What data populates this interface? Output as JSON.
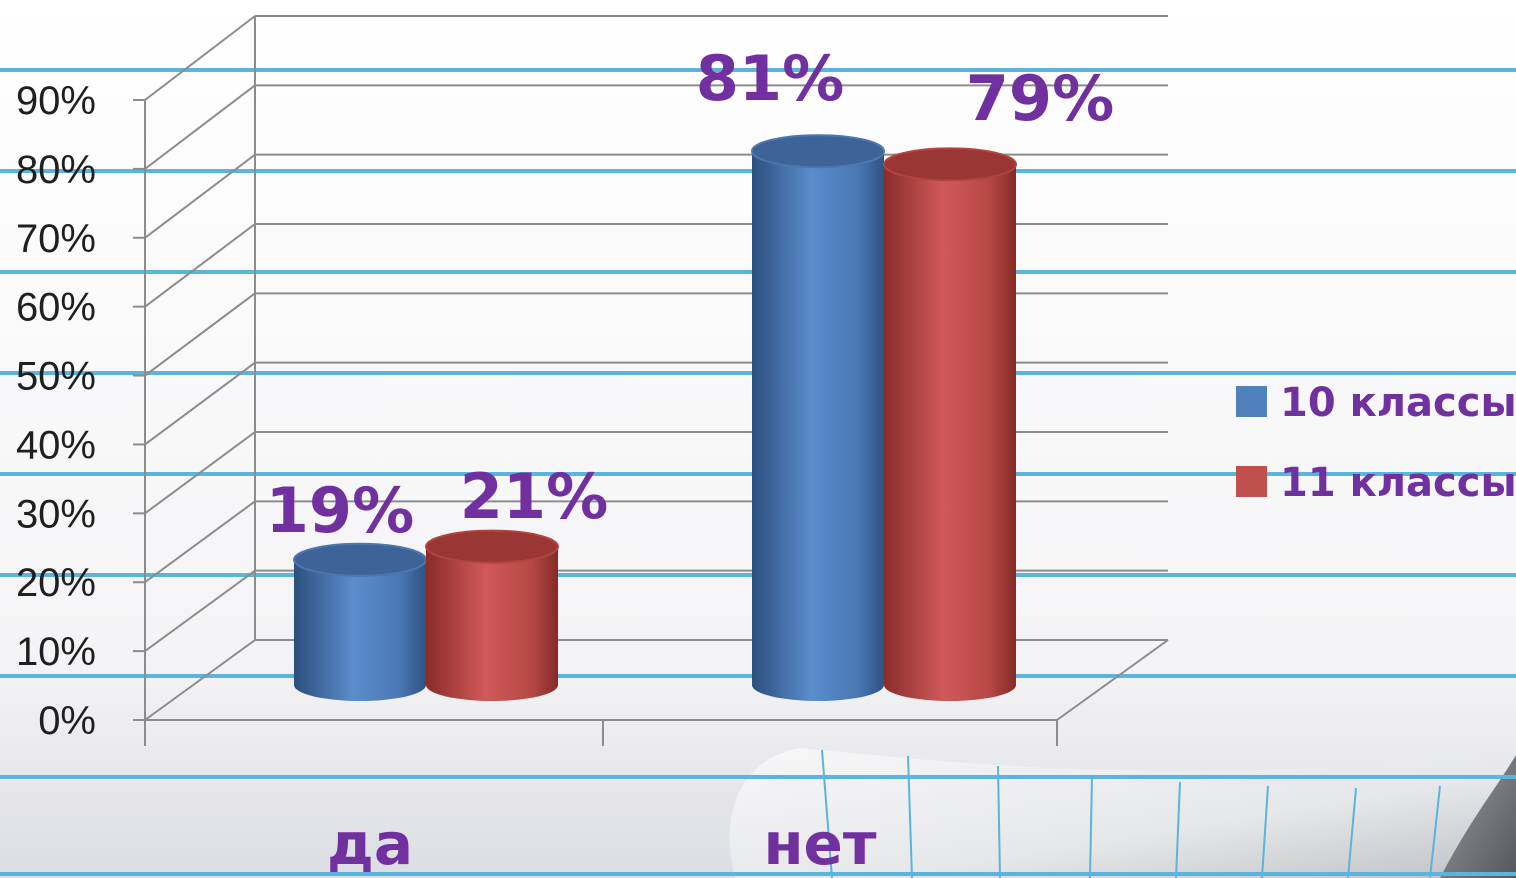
{
  "chart_data": {
    "type": "bar",
    "categories": [
      "да",
      "нет"
    ],
    "series": [
      {
        "name": "10 классы",
        "values": [
          19,
          81
        ]
      },
      {
        "name": "11 классы",
        "values": [
          21,
          79
        ]
      }
    ],
    "data_labels": [
      [
        "19%",
        "81%"
      ],
      [
        "21%",
        "79%"
      ]
    ],
    "yticks": [
      "0%",
      "10%",
      "20%",
      "30%",
      "40%",
      "50%",
      "60%",
      "70%",
      "80%",
      "90%"
    ],
    "ylim": [
      0,
      90
    ],
    "grid": true,
    "legend_position": "right",
    "title": "",
    "xlabel": "",
    "ylabel": ""
  },
  "colors": {
    "series_1": "#4f81bd",
    "series_2": "#c0504d",
    "label_text": "#7030a0",
    "notebook_lines": "#5ab4dc"
  }
}
